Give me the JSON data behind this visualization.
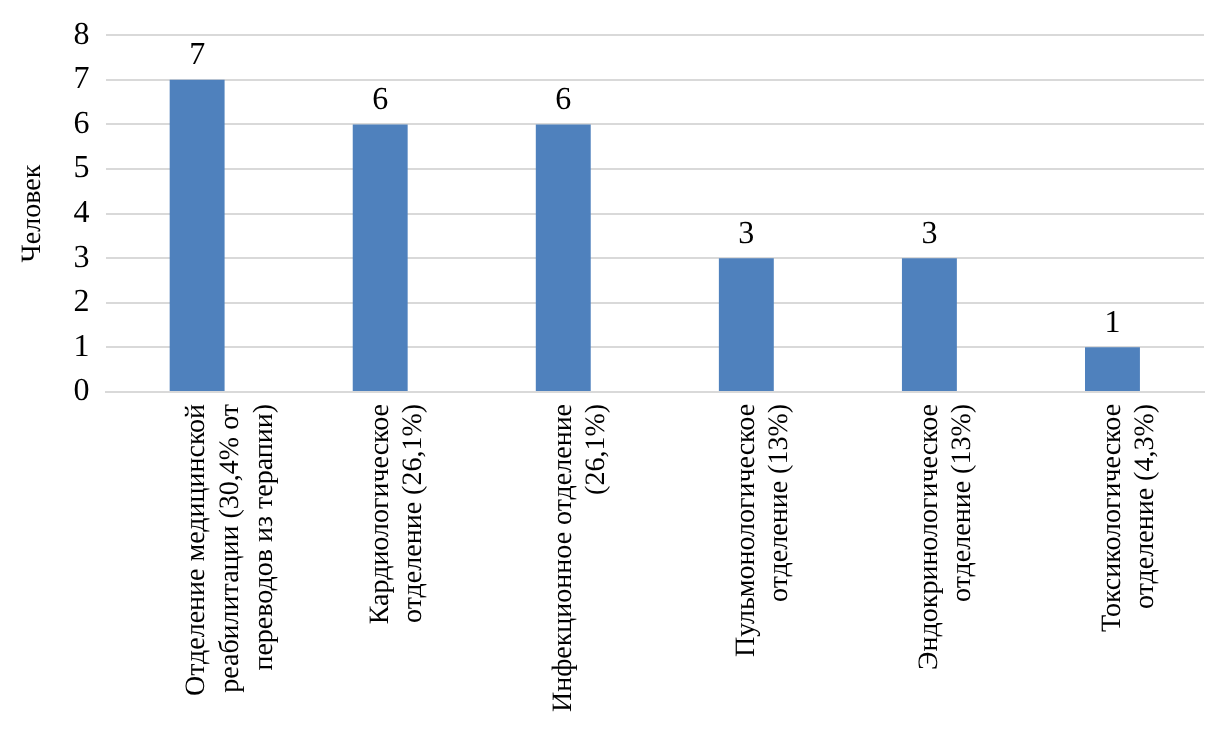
{
  "chart_data": {
    "type": "bar",
    "ylabel": "Человек",
    "categories": [
      "Отделение медицинской реабилитации (30,4% от переводов из терапии)",
      "Кардиологическое отделение (26,1%)",
      "Инфекционное отделение (26,1%)",
      "Пульмонологическое отделение (13%)",
      "Эндокринологическое отделение (13%)",
      "Токсикологическое отделение (4,3%)"
    ],
    "values": [
      7,
      6,
      6,
      3,
      3,
      1
    ],
    "color": "#4f81bd",
    "ylim": [
      0,
      8
    ],
    "yticks": [
      0,
      1,
      2,
      3,
      4,
      5,
      6,
      7,
      8
    ],
    "grid": "y",
    "data_labels": true,
    "legend": false
  }
}
